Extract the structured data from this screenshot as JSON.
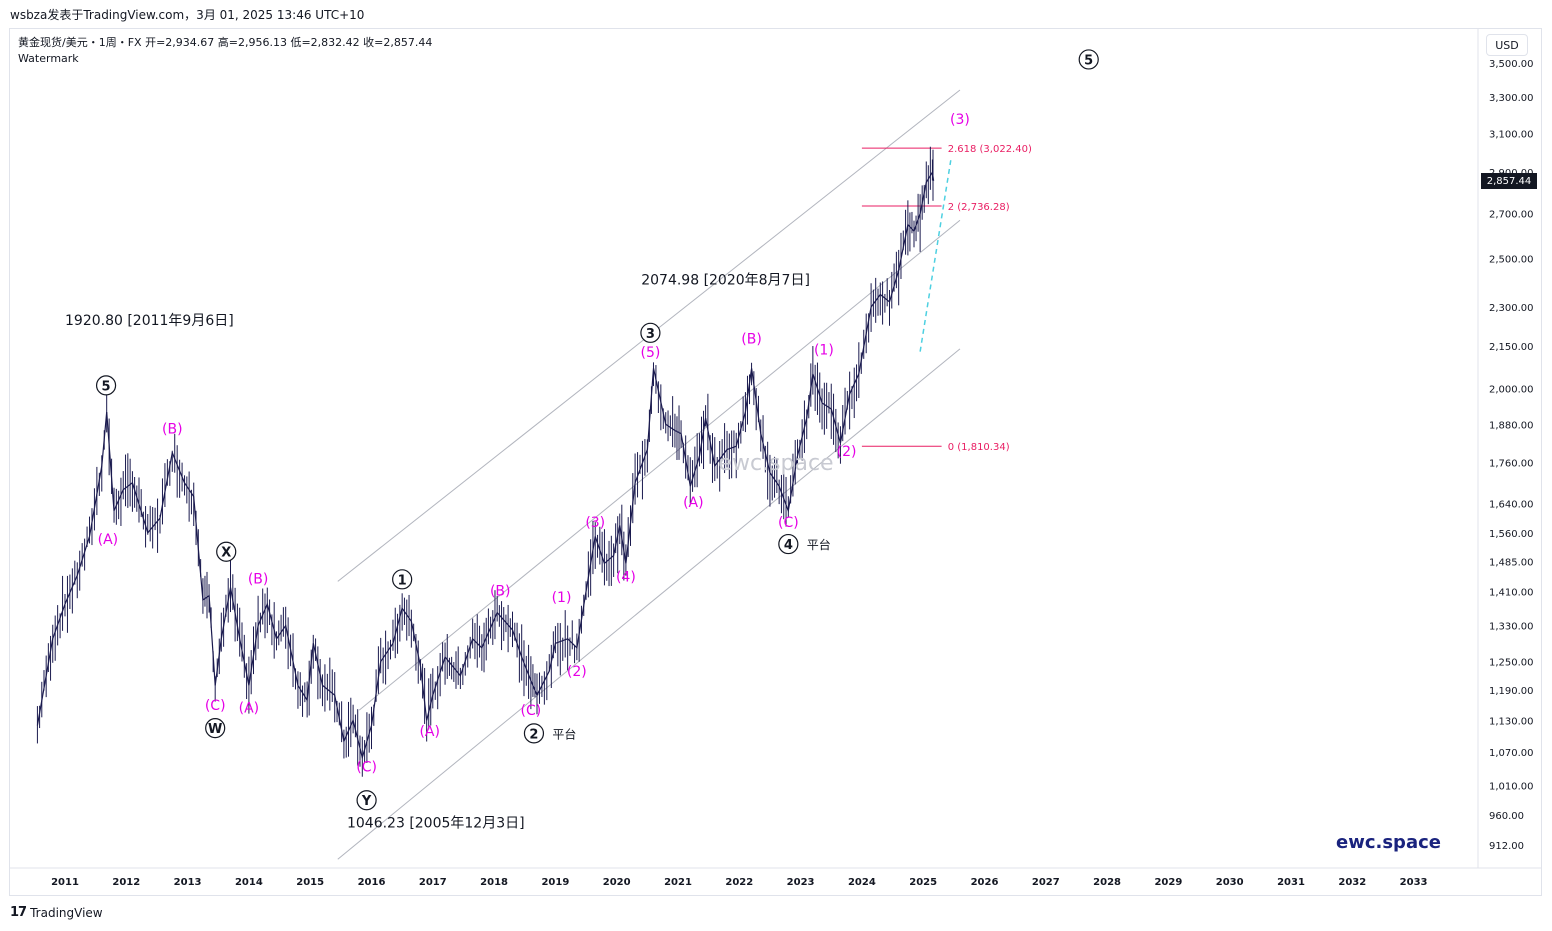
{
  "header": {
    "title": "wsbza发表于TradingView.com，3月 01, 2025 13:46 UTC+10"
  },
  "legend": {
    "ohlc": "黄金现货/美元・1周・FX  开=2,934.67  高=2,956.13  低=2,832.42  收=2,857.44",
    "watermark": "Watermark"
  },
  "currency_button": "USD",
  "last_price": "2,857.44",
  "brand": "ewc.space",
  "watermark_text": "ewc.space",
  "footer": {
    "logo": "17",
    "text": "TradingView"
  },
  "colors": {
    "wave": "#e600e6",
    "fib": "#e91e63",
    "price": "#1a1a4e",
    "channel": "#b2b5be",
    "projection": "#4dd0e1",
    "brand": "#1a237e"
  },
  "chart_data": {
    "type": "candlestick",
    "x_ticks": [
      "2011",
      "2012",
      "2013",
      "2014",
      "2015",
      "2016",
      "2017",
      "2018",
      "2019",
      "2020",
      "2021",
      "2022",
      "2023",
      "2024",
      "2025",
      "2026",
      "2027",
      "2028",
      "2029",
      "2030",
      "2031",
      "2032",
      "2033"
    ],
    "y_ticks": [
      "3,500.00",
      "3,300.00",
      "3,100.00",
      "2,900.00",
      "2,700.00",
      "2,500.00",
      "2,300.00",
      "2,150.00",
      "2,000.00",
      "1,880.00",
      "1,760.00",
      "1,640.00",
      "1,560.00",
      "1,485.00",
      "1,410.00",
      "1,330.00",
      "1,250.00",
      "1,190.00",
      "1,130.00",
      "1,070.00",
      "1,010.00",
      "960.00",
      "912.00"
    ],
    "y_scale": "log",
    "price_path": [
      [
        2010.55,
        1120
      ],
      [
        2010.8,
        1300
      ],
      [
        2011.0,
        1380
      ],
      [
        2011.2,
        1450
      ],
      [
        2011.4,
        1550
      ],
      [
        2011.6,
        1750
      ],
      [
        2011.68,
        1920
      ],
      [
        2011.8,
        1620
      ],
      [
        2011.95,
        1680
      ],
      [
        2012.1,
        1700
      ],
      [
        2012.35,
        1560
      ],
      [
        2012.55,
        1600
      ],
      [
        2012.75,
        1790
      ],
      [
        2012.95,
        1700
      ],
      [
        2013.1,
        1660
      ],
      [
        2013.25,
        1390
      ],
      [
        2013.35,
        1400
      ],
      [
        2013.45,
        1200
      ],
      [
        2013.55,
        1300
      ],
      [
        2013.7,
        1420
      ],
      [
        2013.85,
        1300
      ],
      [
        2014.0,
        1200
      ],
      [
        2014.15,
        1330
      ],
      [
        2014.3,
        1380
      ],
      [
        2014.45,
        1300
      ],
      [
        2014.6,
        1330
      ],
      [
        2014.8,
        1200
      ],
      [
        2014.95,
        1170
      ],
      [
        2015.05,
        1290
      ],
      [
        2015.2,
        1200
      ],
      [
        2015.4,
        1180
      ],
      [
        2015.55,
        1090
      ],
      [
        2015.7,
        1130
      ],
      [
        2015.85,
        1060
      ],
      [
        2016.0,
        1120
      ],
      [
        2016.15,
        1250
      ],
      [
        2016.35,
        1290
      ],
      [
        2016.5,
        1370
      ],
      [
        2016.65,
        1340
      ],
      [
        2016.8,
        1240
      ],
      [
        2016.9,
        1130
      ],
      [
        2017.0,
        1180
      ],
      [
        2017.2,
        1260
      ],
      [
        2017.45,
        1220
      ],
      [
        2017.65,
        1300
      ],
      [
        2017.8,
        1280
      ],
      [
        2018.05,
        1360
      ],
      [
        2018.3,
        1320
      ],
      [
        2018.45,
        1260
      ],
      [
        2018.6,
        1210
      ],
      [
        2018.7,
        1180
      ],
      [
        2018.9,
        1230
      ],
      [
        2019.0,
        1290
      ],
      [
        2019.2,
        1300
      ],
      [
        2019.35,
        1280
      ],
      [
        2019.5,
        1410
      ],
      [
        2019.65,
        1550
      ],
      [
        2019.8,
        1480
      ],
      [
        2019.95,
        1500
      ],
      [
        2020.05,
        1580
      ],
      [
        2020.15,
        1480
      ],
      [
        2020.3,
        1700
      ],
      [
        2020.5,
        1800
      ],
      [
        2020.6,
        2070
      ],
      [
        2020.8,
        1880
      ],
      [
        2020.95,
        1860
      ],
      [
        2021.05,
        1850
      ],
      [
        2021.2,
        1690
      ],
      [
        2021.35,
        1780
      ],
      [
        2021.45,
        1900
      ],
      [
        2021.6,
        1750
      ],
      [
        2021.8,
        1800
      ],
      [
        2021.95,
        1810
      ],
      [
        2022.1,
        1920
      ],
      [
        2022.2,
        2070
      ],
      [
        2022.35,
        1850
      ],
      [
        2022.5,
        1730
      ],
      [
        2022.65,
        1690
      ],
      [
        2022.8,
        1620
      ],
      [
        2022.95,
        1780
      ],
      [
        2023.1,
        1900
      ],
      [
        2023.2,
        2050
      ],
      [
        2023.35,
        1950
      ],
      [
        2023.5,
        1930
      ],
      [
        2023.65,
        1820
      ],
      [
        2023.8,
        1980
      ],
      [
        2023.95,
        2050
      ],
      [
        2024.15,
        2300
      ],
      [
        2024.3,
        2350
      ],
      [
        2024.45,
        2320
      ],
      [
        2024.6,
        2450
      ],
      [
        2024.75,
        2650
      ],
      [
        2024.85,
        2620
      ],
      [
        2024.95,
        2700
      ],
      [
        2025.05,
        2850
      ],
      [
        2025.15,
        2900
      ],
      [
        2025.17,
        2857.44
      ]
    ],
    "channel_lines": [
      {
        "x1": 2015.45,
        "y1": 1435,
        "x2": 2025.6,
        "y2": 3340
      },
      {
        "x1": 2015.8,
        "y1": 1150,
        "x2": 2025.6,
        "y2": 2670
      },
      {
        "x1": 2015.45,
        "y1": 890,
        "x2": 2025.6,
        "y2": 2140
      }
    ],
    "fib_levels": [
      {
        "label": "2.618 (3,022.40)",
        "value": 3022.4
      },
      {
        "label": "2 (2,736.28)",
        "value": 2736.28
      },
      {
        "label": "0 (1,810.34)",
        "value": 1810.34
      }
    ],
    "projection": [
      [
        2024.95,
        2130
      ],
      [
        2025.45,
        2960
      ]
    ],
    "annotations": [
      {
        "text": "1920.80 [2011年9月6日]",
        "x": 2011.0,
        "y": 2230,
        "style": "plain"
      },
      {
        "text": "2074.98 [2020年8月7日]",
        "x": 2020.4,
        "y": 2390,
        "style": "plain"
      },
      {
        "text": "1046.23 [2005年12月3日]",
        "x": 2015.6,
        "y": 940,
        "style": "plain"
      },
      {
        "text": "5",
        "x": 2011.67,
        "y": 2010,
        "style": "circle"
      },
      {
        "text": "X",
        "x": 2013.63,
        "y": 1510,
        "style": "circle"
      },
      {
        "text": "W",
        "x": 2013.45,
        "y": 1115,
        "style": "circle"
      },
      {
        "text": "Y",
        "x": 2015.92,
        "y": 985,
        "style": "circle"
      },
      {
        "text": "1",
        "x": 2016.5,
        "y": 1440,
        "style": "circle"
      },
      {
        "text": "2",
        "x": 2018.65,
        "y": 1105,
        "style": "circle"
      },
      {
        "text": "3",
        "x": 2020.55,
        "y": 2200,
        "style": "circle"
      },
      {
        "text": "4",
        "x": 2022.8,
        "y": 1530,
        "style": "circle"
      },
      {
        "text": "5",
        "x": 2027.7,
        "y": 3520,
        "style": "circle"
      },
      {
        "text": "平台",
        "x": 2018.95,
        "y": 1105,
        "style": "plain-small"
      },
      {
        "text": "平台",
        "x": 2023.1,
        "y": 1530,
        "style": "plain-small"
      },
      {
        "text": "(A)",
        "x": 2011.7,
        "y": 1530,
        "style": "wave"
      },
      {
        "text": "(B)",
        "x": 2012.75,
        "y": 1850,
        "style": "wave"
      },
      {
        "text": "(C)",
        "x": 2013.45,
        "y": 1150,
        "style": "wave"
      },
      {
        "text": "(B)",
        "x": 2014.15,
        "y": 1430,
        "style": "wave"
      },
      {
        "text": "(A)",
        "x": 2014.0,
        "y": 1145,
        "style": "wave"
      },
      {
        "text": "(C)",
        "x": 2015.92,
        "y": 1035,
        "style": "wave"
      },
      {
        "text": "(A)",
        "x": 2016.95,
        "y": 1100,
        "style": "wave"
      },
      {
        "text": "(B)",
        "x": 2018.1,
        "y": 1400,
        "style": "wave"
      },
      {
        "text": "(C)",
        "x": 2018.6,
        "y": 1140,
        "style": "wave"
      },
      {
        "text": "(1)",
        "x": 2019.1,
        "y": 1385,
        "style": "wave"
      },
      {
        "text": "(2)",
        "x": 2019.35,
        "y": 1220,
        "style": "wave"
      },
      {
        "text": "(3)",
        "x": 2019.65,
        "y": 1575,
        "style": "wave"
      },
      {
        "text": "(4)",
        "x": 2020.15,
        "y": 1435,
        "style": "wave"
      },
      {
        "text": "(5)",
        "x": 2020.55,
        "y": 2110,
        "style": "wave"
      },
      {
        "text": "(A)",
        "x": 2021.25,
        "y": 1630,
        "style": "wave"
      },
      {
        "text": "(B)",
        "x": 2022.2,
        "y": 2160,
        "style": "wave"
      },
      {
        "text": "(C)",
        "x": 2022.8,
        "y": 1575,
        "style": "wave"
      },
      {
        "text": "(1)",
        "x": 2023.38,
        "y": 2120,
        "style": "wave"
      },
      {
        "text": "(2)",
        "x": 2023.75,
        "y": 1780,
        "style": "wave"
      },
      {
        "text": "(3)",
        "x": 2025.6,
        "y": 3150,
        "style": "wave"
      }
    ]
  }
}
